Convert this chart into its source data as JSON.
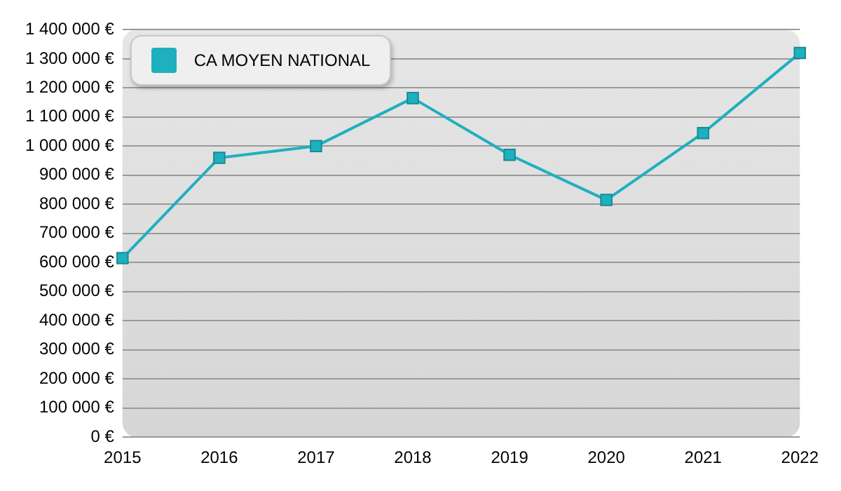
{
  "chart_data": {
    "type": "line",
    "categories": [
      "2015",
      "2016",
      "2017",
      "2018",
      "2019",
      "2020",
      "2021",
      "2022"
    ],
    "series": [
      {
        "name": "CA MOYEN NATIONAL",
        "color": "#1fb0bf",
        "values": [
          615000,
          960000,
          1000000,
          1165000,
          970000,
          815000,
          1045000,
          1320000
        ]
      }
    ],
    "ylim": [
      0,
      1400000
    ],
    "yticks": [
      {
        "value": 0,
        "label": "0 €"
      },
      {
        "value": 100000,
        "label": "100 000 €"
      },
      {
        "value": 200000,
        "label": "200 000 €"
      },
      {
        "value": 300000,
        "label": "300 000 €"
      },
      {
        "value": 400000,
        "label": "400 000 €"
      },
      {
        "value": 500000,
        "label": "500 000 €"
      },
      {
        "value": 600000,
        "label": "600 000 €"
      },
      {
        "value": 700000,
        "label": "700 000 €"
      },
      {
        "value": 800000,
        "label": "800 000 €"
      },
      {
        "value": 900000,
        "label": "900 000 €"
      },
      {
        "value": 1000000,
        "label": "1 000 000 €"
      },
      {
        "value": 1100000,
        "label": "1 100 000 €"
      },
      {
        "value": 1200000,
        "label": "1 200 000 €"
      },
      {
        "value": 1300000,
        "label": "1 300 000 €"
      },
      {
        "value": 1400000,
        "label": "1 400 000 €"
      }
    ],
    "grid": "y",
    "legend": "top left",
    "marker": "square",
    "line_style": "solid"
  }
}
